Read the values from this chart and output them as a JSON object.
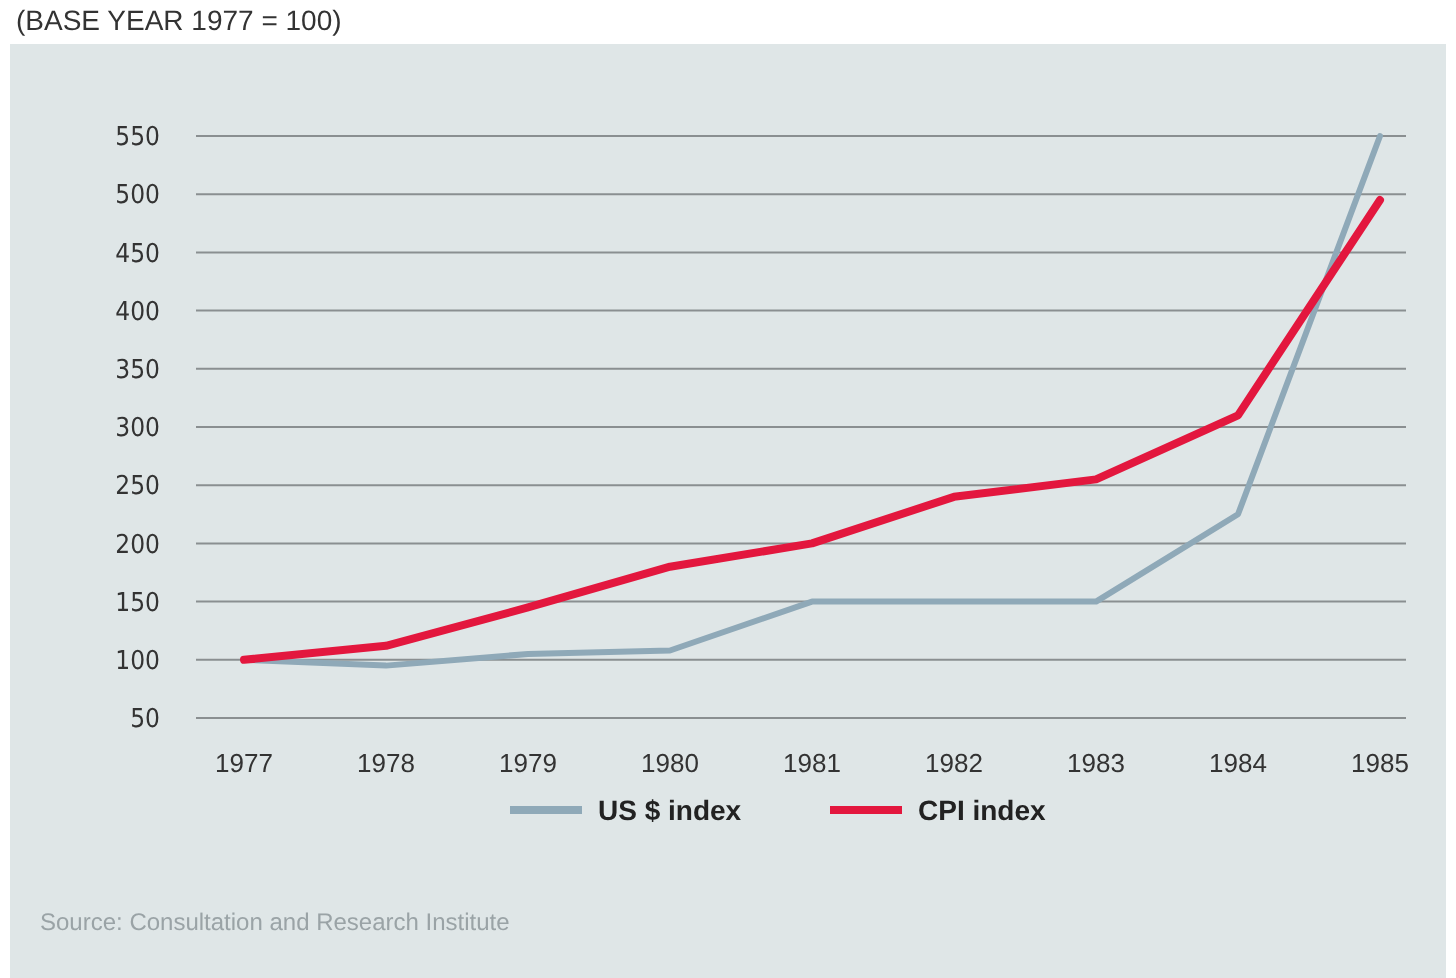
{
  "chart_data": {
    "type": "line",
    "subtitle": "(BASE YEAR 1977 = 100)",
    "categories": [
      "1977",
      "1978",
      "1979",
      "1980",
      "1981",
      "1982",
      "1983",
      "1984",
      "1985"
    ],
    "series": [
      {
        "name": "US $ index",
        "color": "#8fa9b8",
        "values": [
          100,
          95,
          105,
          108,
          150,
          150,
          150,
          225,
          550
        ]
      },
      {
        "name": "CPI index",
        "color": "#e3173e",
        "values": [
          100,
          112,
          145,
          180,
          200,
          240,
          255,
          310,
          495
        ]
      }
    ],
    "ylim": [
      50,
      550
    ],
    "yticks": [
      50,
      100,
      150,
      200,
      250,
      300,
      350,
      400,
      450,
      500,
      550
    ],
    "grid": "y",
    "legend": "bottom",
    "line_style": "solid",
    "marker": "none",
    "annotations": [
      "Source: Consultation and Research Institute"
    ]
  }
}
